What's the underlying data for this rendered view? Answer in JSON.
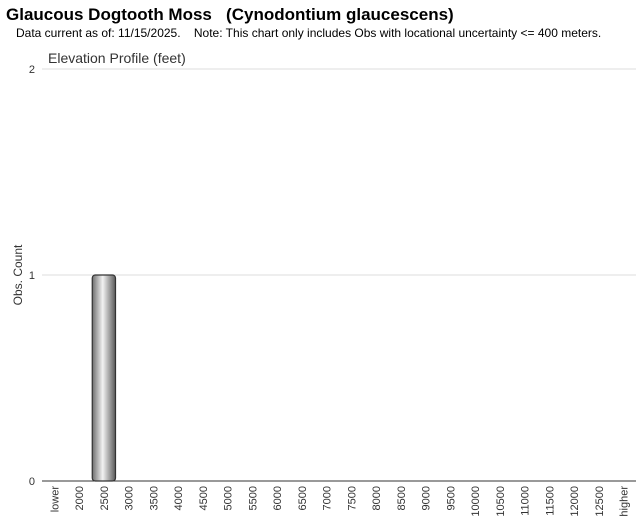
{
  "chart_data": {
    "type": "bar",
    "title": "Glaucous Dogtooth Moss   (Cynodontium glaucescens)",
    "subtitle": "Data current as of: 11/15/2025.    Note: This chart only includes Obs with locational uncertainty <= 400 meters.",
    "chart_title": "Elevation Profile (feet)",
    "y_label": "Obs. Count",
    "categories": [
      "lower",
      "2000",
      "2500",
      "3000",
      "3500",
      "4000",
      "4500",
      "5000",
      "5500",
      "6000",
      "6500",
      "7000",
      "7500",
      "8000",
      "8500",
      "9000",
      "9500",
      "10000",
      "10500",
      "11000",
      "11500",
      "12000",
      "12500",
      "higher"
    ],
    "values": [
      0,
      0,
      1,
      0,
      0,
      0,
      0,
      0,
      0,
      0,
      0,
      0,
      0,
      0,
      0,
      0,
      0,
      0,
      0,
      0,
      0,
      0,
      0,
      0
    ],
    "color": "#9a9a9a",
    "ylim": [
      0,
      2
    ],
    "yticks": [
      0,
      1,
      2
    ],
    "grid": true
  }
}
